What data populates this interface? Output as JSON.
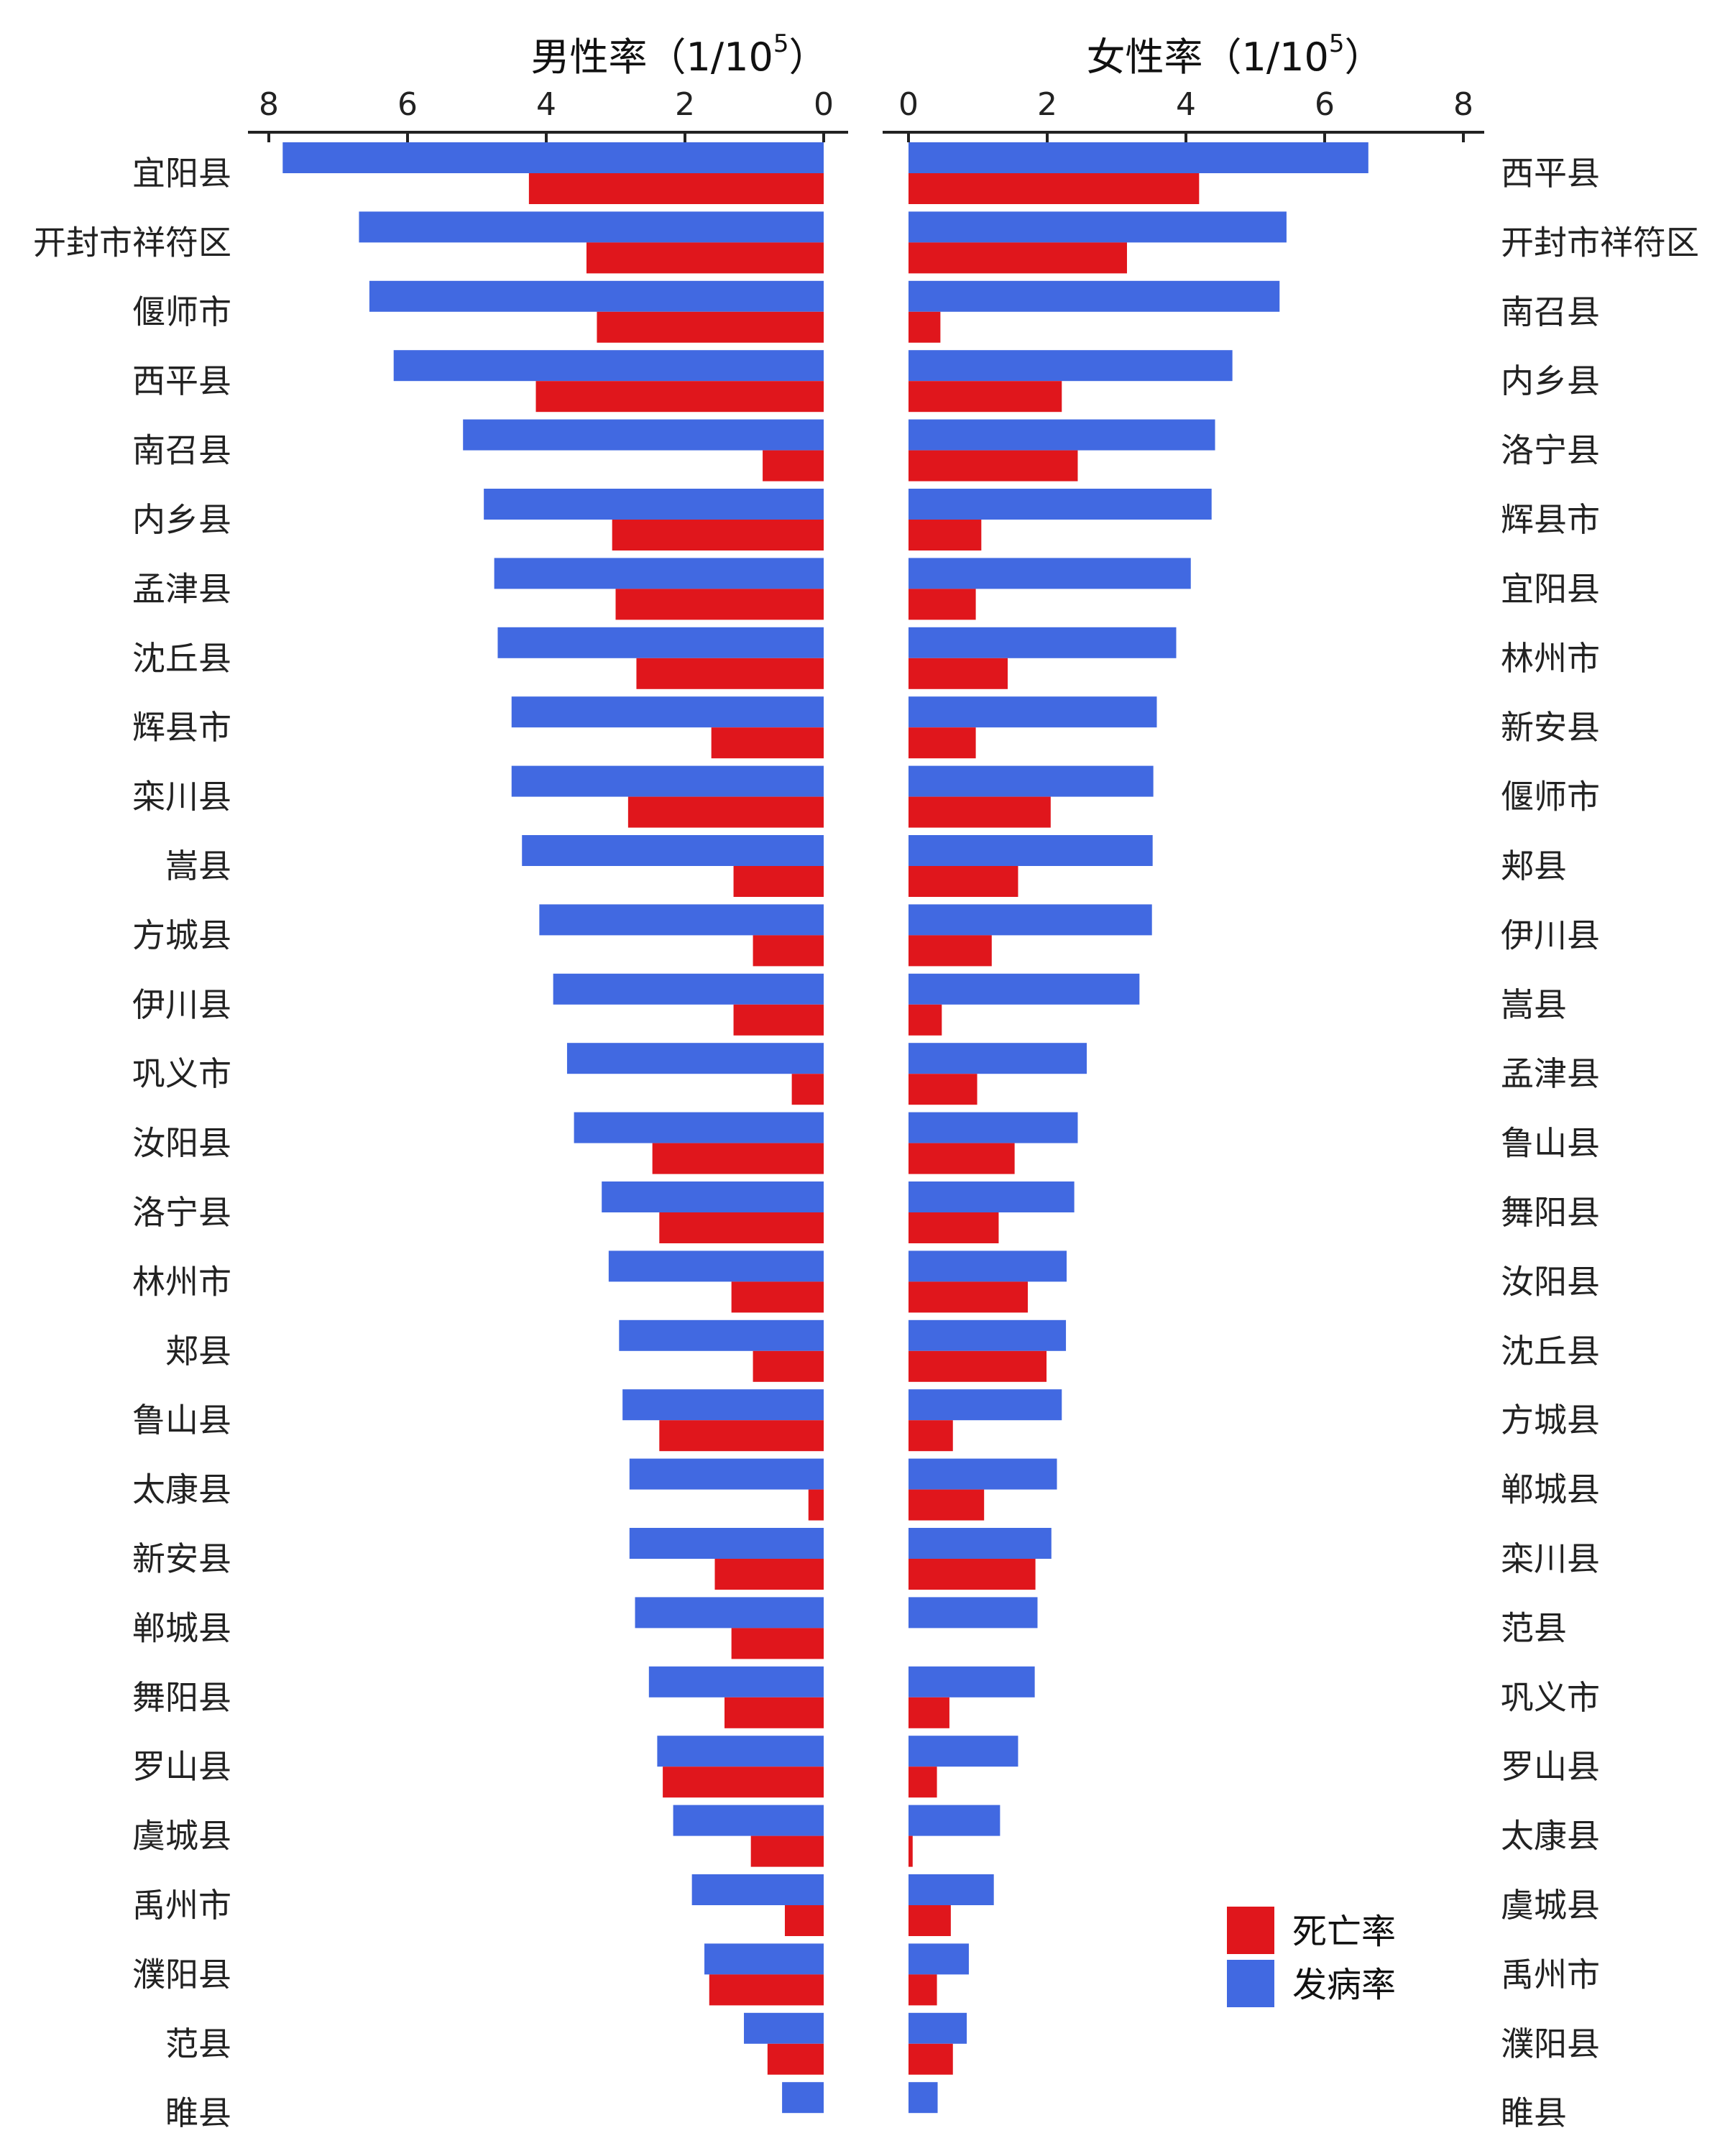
{
  "chart_data": {
    "type": "bar",
    "orientation": "horizontal",
    "colors": {
      "death": "#e0161c",
      "incidence": "#4169e1"
    },
    "legend": {
      "position": "bottom-right",
      "entries": [
        "死亡率",
        "发病率"
      ]
    },
    "panels": [
      {
        "id": "male",
        "title_main": "男性率",
        "title_paren_open": "（",
        "title_unit": "1/10",
        "title_exp": "5",
        "title_paren_close": "）",
        "direction": "reversed",
        "xlim": [
          0,
          8
        ],
        "ticks": [
          "8",
          "6",
          "4",
          "2",
          "0"
        ],
        "categories": [
          "宜阳县",
          "开封市祥符区",
          "偃师市",
          "西平县",
          "南召县",
          "内乡县",
          "孟津县",
          "沈丘县",
          "辉县市",
          "栾川县",
          "嵩县",
          "方城县",
          "伊川县",
          "巩义市",
          "汝阳县",
          "洛宁县",
          "林州市",
          "郏县",
          "鲁山县",
          "太康县",
          "新安县",
          "郸城县",
          "舞阳县",
          "罗山县",
          "虞城县",
          "禹州市",
          "濮阳县",
          "范县",
          "睢县"
        ],
        "series": [
          {
            "name": "发病率",
            "values": [
              7.8,
              6.7,
              6.55,
              6.2,
              5.2,
              4.9,
              4.75,
              4.7,
              4.5,
              4.5,
              4.35,
              4.1,
              3.9,
              3.7,
              3.6,
              3.2,
              3.1,
              2.95,
              2.9,
              2.8,
              2.8,
              2.72,
              2.52,
              2.4,
              2.17,
              1.9,
              1.72,
              1.15,
              0.6
            ]
          },
          {
            "name": "死亡率",
            "values": [
              4.25,
              3.42,
              3.27,
              4.15,
              0.88,
              3.05,
              3.0,
              2.7,
              1.62,
              2.82,
              1.3,
              1.02,
              1.3,
              0.46,
              2.47,
              2.37,
              1.33,
              1.02,
              2.37,
              0.22,
              1.57,
              1.33,
              1.43,
              2.32,
              1.05,
              0.56,
              1.65,
              0.81,
              0.0
            ]
          }
        ]
      },
      {
        "id": "female",
        "title_main": "女性率",
        "title_paren_open": "（",
        "title_unit": "1/10",
        "title_exp": "5",
        "title_paren_close": "）",
        "direction": "normal",
        "xlim": [
          0,
          8
        ],
        "ticks": [
          "0",
          "2",
          "4",
          "6",
          "8"
        ],
        "categories": [
          "西平县",
          "开封市祥符区",
          "南召县",
          "内乡县",
          "洛宁县",
          "辉县市",
          "宜阳县",
          "林州市",
          "新安县",
          "偃师市",
          "郏县",
          "伊川县",
          "嵩县",
          "孟津县",
          "鲁山县",
          "舞阳县",
          "汝阳县",
          "沈丘县",
          "方城县",
          "郸城县",
          "栾川县",
          "范县",
          "巩义市",
          "罗山县",
          "太康县",
          "虞城县",
          "禹州市",
          "濮阳县",
          "睢县"
        ],
        "series": [
          {
            "name": "发病率",
            "values": [
              6.63,
              5.45,
              5.35,
              4.67,
              4.42,
              4.37,
              4.07,
              3.86,
              3.58,
              3.53,
              3.52,
              3.51,
              3.33,
              2.57,
              2.44,
              2.39,
              2.28,
              2.27,
              2.21,
              2.14,
              2.06,
              1.86,
              1.82,
              1.58,
              1.32,
              1.23,
              0.87,
              0.84,
              0.42
            ]
          },
          {
            "name": "死亡率",
            "values": [
              4.19,
              3.15,
              0.46,
              2.21,
              2.44,
              1.05,
              0.97,
              1.43,
              0.97,
              2.05,
              1.58,
              1.2,
              0.48,
              0.99,
              1.53,
              1.3,
              1.72,
              1.99,
              0.64,
              1.09,
              1.83,
              0.0,
              0.59,
              0.41,
              0.06,
              0.61,
              0.41,
              0.64,
              0.0
            ]
          }
        ]
      }
    ]
  }
}
